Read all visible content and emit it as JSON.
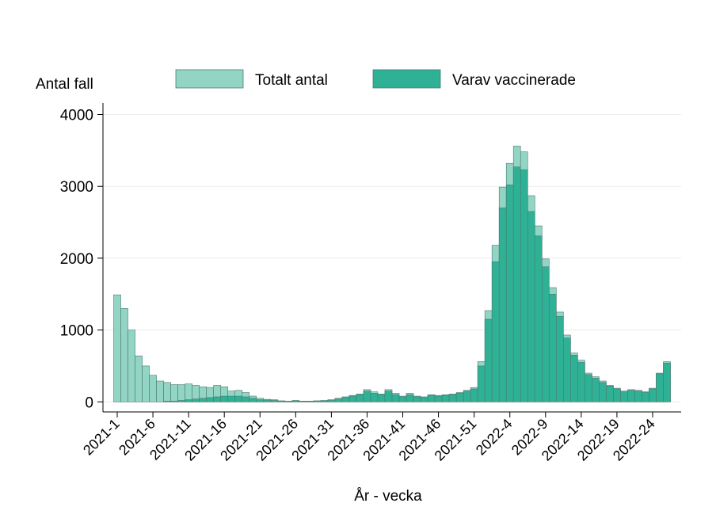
{
  "chart_data": {
    "type": "bar",
    "y_label": "Antal fall",
    "x_label": "År - vecka",
    "categories": [
      "2021-1",
      null,
      null,
      null,
      null,
      "2021-6",
      null,
      null,
      null,
      null,
      "2021-11",
      null,
      null,
      null,
      null,
      "2021-16",
      null,
      null,
      null,
      null,
      "2021-21",
      null,
      null,
      null,
      null,
      "2021-26",
      null,
      null,
      null,
      null,
      "2021-31",
      null,
      null,
      null,
      null,
      "2021-36",
      null,
      null,
      null,
      null,
      "2021-41",
      null,
      null,
      null,
      null,
      "2021-46",
      null,
      null,
      null,
      null,
      "2021-51",
      null,
      null,
      null,
      null,
      "2022-4",
      null,
      null,
      null,
      null,
      "2022-9",
      null,
      null,
      null,
      null,
      "2022-14",
      null,
      null,
      null,
      null,
      "2022-19",
      null,
      null,
      null,
      null,
      "2022-24",
      null,
      null
    ],
    "series": [
      {
        "name": "Totalt antal",
        "color": "#93d5c4",
        "values": [
          1490,
          1300,
          1000,
          640,
          500,
          370,
          290,
          270,
          240,
          240,
          250,
          230,
          210,
          200,
          230,
          210,
          150,
          160,
          130,
          80,
          50,
          35,
          30,
          15,
          10,
          20,
          10,
          10,
          15,
          20,
          30,
          50,
          70,
          90,
          110,
          170,
          140,
          110,
          170,
          120,
          80,
          120,
          80,
          70,
          100,
          90,
          100,
          110,
          130,
          160,
          200,
          560,
          1270,
          2180,
          2990,
          3320,
          3560,
          3480,
          2870,
          2450,
          1990,
          1590,
          1250,
          930,
          680,
          580,
          400,
          350,
          290,
          230,
          190,
          150,
          170,
          160,
          140,
          190,
          400,
          560
        ]
      },
      {
        "name": "Varav vaccinerade",
        "color": "#2fb196",
        "values": [
          0,
          0,
          0,
          0,
          0,
          0,
          0,
          10,
          10,
          20,
          30,
          40,
          50,
          60,
          70,
          80,
          80,
          80,
          70,
          50,
          30,
          25,
          20,
          10,
          8,
          15,
          8,
          8,
          12,
          15,
          25,
          40,
          60,
          80,
          100,
          150,
          120,
          100,
          150,
          100,
          70,
          100,
          70,
          60,
          90,
          80,
          90,
          100,
          120,
          150,
          180,
          500,
          1150,
          1950,
          2700,
          3020,
          3270,
          3230,
          2650,
          2310,
          1880,
          1500,
          1190,
          890,
          650,
          550,
          380,
          330,
          270,
          220,
          180,
          140,
          160,
          150,
          135,
          180,
          390,
          540
        ]
      }
    ],
    "ylim": [
      -140,
      4160
    ],
    "yticks": [
      0,
      1000,
      2000,
      3000,
      4000
    ],
    "grid": true
  }
}
